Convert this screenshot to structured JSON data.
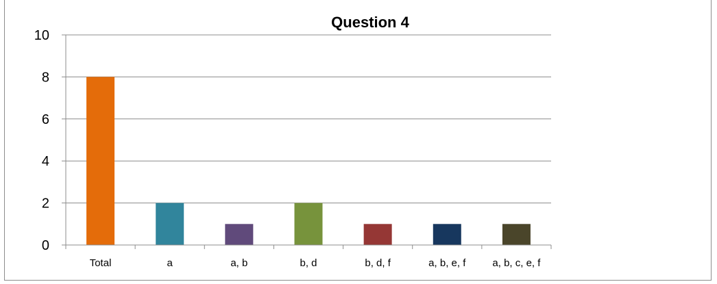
{
  "chart_data": {
    "type": "bar",
    "title": "Question 4",
    "categories": [
      "Total",
      "a",
      "a, b",
      "b, d",
      "b, d, f",
      "a, b, e, f",
      "a, b, c, e, f"
    ],
    "values": [
      8,
      2,
      1,
      2,
      1,
      1,
      1
    ],
    "colors": [
      "#e46c0a",
      "#31859c",
      "#604a7b",
      "#77933c",
      "#953735",
      "#17375e",
      "#4a452a"
    ],
    "ylim": [
      0,
      10
    ],
    "yticks": [
      0,
      2,
      4,
      6,
      8,
      10
    ],
    "grid": true,
    "legend": "none",
    "xlabel": "",
    "ylabel": ""
  }
}
